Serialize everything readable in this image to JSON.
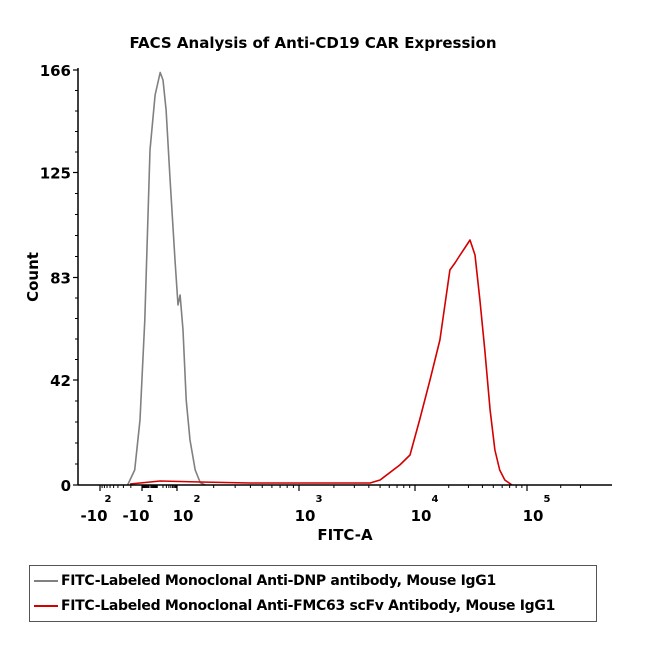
{
  "chart_data": {
    "type": "line",
    "title": "FACS Analysis of Anti-CD19 CAR Expression",
    "xlabel": "FITC-A",
    "ylabel": "Count",
    "x_scale": "logicle",
    "ylim": [
      0,
      166
    ],
    "y_ticks": [
      0,
      42,
      83,
      125,
      166
    ],
    "x_ticks": [
      {
        "value": -100,
        "base": "-10",
        "exp": "2"
      },
      {
        "value": -10,
        "base": "-10",
        "exp": "1"
      },
      {
        "value": 100,
        "base": "10",
        "exp": "2"
      },
      {
        "value": 1000,
        "base": "10",
        "exp": "3"
      },
      {
        "value": 10000,
        "base": "10",
        "exp": "4"
      },
      {
        "value": 100000,
        "base": "10",
        "exp": "5"
      }
    ],
    "legend_position": "bottom",
    "series": [
      {
        "name": "FITC-Labeled Monoclonal Anti-DNP antibody, Mouse IgG1",
        "color": "#808080",
        "x": [
          -24,
          -16,
          -11.5,
          -6,
          0,
          6,
          14,
          20,
          29,
          46,
          80,
          102,
          106,
          112,
          119,
          128,
          141,
          155,
          170
        ],
        "y": [
          0,
          6,
          26,
          66,
          134,
          156,
          165,
          162,
          150,
          122,
          90,
          72,
          76,
          62,
          34,
          18,
          6,
          1,
          0
        ]
      },
      {
        "name": "FITC-Labeled Monoclonal Anti-FMC63 scFv Antibody, Mouse IgG1",
        "color": "#d40000",
        "x": [
          -21,
          14,
          155,
          397,
          1000,
          4100,
          5000,
          7400,
          9060,
          11000,
          13600,
          16700,
          20500,
          22900,
          25300,
          28000,
          31000,
          34300,
          38000,
          42000,
          46800,
          51700,
          57000,
          63400,
          73400
        ],
        "y": [
          0.4,
          1.6,
          1.2,
          0.8,
          0.8,
          0.8,
          2,
          8,
          12,
          26,
          42,
          58,
          86,
          89,
          92,
          95,
          98,
          92,
          74,
          54,
          30,
          14,
          6,
          2,
          0
        ]
      }
    ]
  }
}
